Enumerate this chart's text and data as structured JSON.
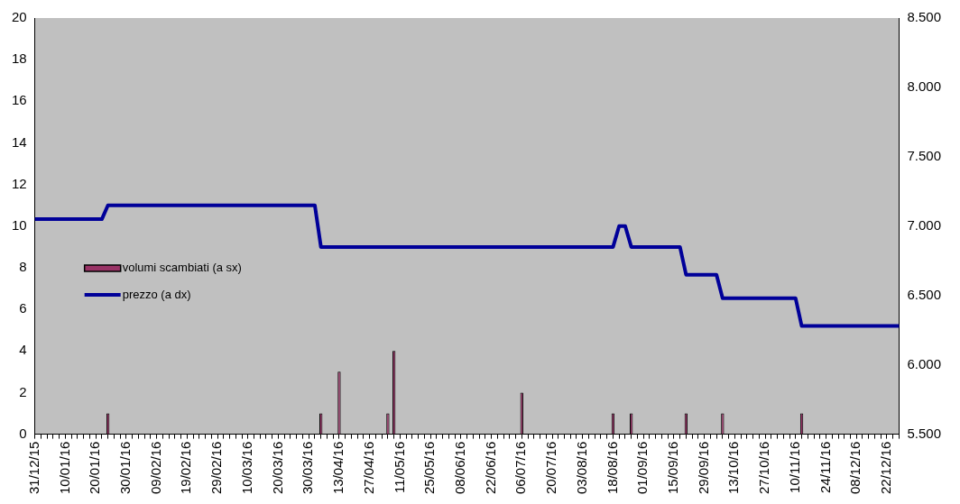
{
  "chart_data": {
    "type": "bar",
    "categories": [
      "31/12/15",
      null,
      null,
      null,
      null,
      "10/01/16",
      null,
      null,
      null,
      null,
      "20/01/16",
      null,
      null,
      null,
      null,
      "30/01/16",
      null,
      null,
      null,
      null,
      "09/02/16",
      null,
      null,
      null,
      null,
      "19/02/16",
      null,
      null,
      null,
      null,
      "29/02/16",
      null,
      null,
      null,
      null,
      "10/03/16",
      null,
      null,
      null,
      null,
      "20/03/16",
      null,
      null,
      null,
      null,
      "30/03/16",
      null,
      null,
      null,
      null,
      "13/04/16",
      null,
      null,
      null,
      null,
      "27/04/16",
      null,
      null,
      null,
      null,
      "11/05/16",
      null,
      null,
      null,
      null,
      "25/05/16",
      null,
      null,
      null,
      null,
      "08/06/16",
      null,
      null,
      null,
      null,
      "22/06/16",
      null,
      null,
      null,
      null,
      "06/07/16",
      null,
      null,
      null,
      null,
      "20/07/16",
      null,
      null,
      null,
      null,
      "03/08/16",
      null,
      null,
      null,
      null,
      "18/08/16",
      null,
      null,
      null,
      null,
      "01/09/16",
      null,
      null,
      null,
      null,
      "15/09/16",
      null,
      null,
      null,
      null,
      "29/09/16",
      null,
      null,
      null,
      null,
      "13/10/16",
      null,
      null,
      null,
      null,
      "27/10/16",
      null,
      null,
      null,
      null,
      "10/11/16",
      null,
      null,
      null,
      null,
      "24/11/16",
      null,
      null,
      null,
      null,
      "08/12/16",
      null,
      null,
      null,
      null,
      "22/12/16",
      null,
      null
    ],
    "series": [
      {
        "name": "volumi scambiati (a sx)",
        "color": "#993366",
        "values": [
          0,
          0,
          0,
          0,
          0,
          0,
          0,
          0,
          0,
          0,
          0,
          0,
          1,
          0,
          0,
          0,
          0,
          0,
          0,
          0,
          0,
          0,
          0,
          0,
          0,
          0,
          0,
          0,
          0,
          0,
          0,
          0,
          0,
          0,
          0,
          0,
          0,
          0,
          0,
          0,
          0,
          0,
          0,
          0,
          0,
          0,
          0,
          1,
          0,
          0,
          3,
          0,
          0,
          0,
          0,
          0,
          0,
          0,
          1,
          4,
          0,
          0,
          0,
          0,
          0,
          0,
          0,
          0,
          0,
          0,
          0,
          0,
          0,
          0,
          0,
          0,
          0,
          0,
          0,
          0,
          2,
          0,
          0,
          0,
          0,
          0,
          0,
          0,
          0,
          0,
          0,
          0,
          0,
          0,
          0,
          1,
          0,
          0,
          1,
          0,
          0,
          0,
          0,
          0,
          0,
          0,
          0,
          1,
          0,
          0,
          0,
          0,
          0,
          1,
          0,
          0,
          0,
          0,
          0,
          0,
          0,
          0,
          0,
          0,
          0,
          0,
          1,
          0,
          0,
          0,
          0,
          0,
          0,
          0,
          0,
          0,
          0,
          0,
          0,
          0,
          0,
          0,
          0
        ]
      },
      {
        "name": "prezzo (a dx)",
        "type": "line",
        "axis": "y2",
        "color": "#000099",
        "values": [
          7050,
          7050,
          7050,
          7050,
          7050,
          7050,
          7050,
          7050,
          7050,
          7050,
          7050,
          7050,
          7150,
          7150,
          7150,
          7150,
          7150,
          7150,
          7150,
          7150,
          7150,
          7150,
          7150,
          7150,
          7150,
          7150,
          7150,
          7150,
          7150,
          7150,
          7150,
          7150,
          7150,
          7150,
          7150,
          7150,
          7150,
          7150,
          7150,
          7150,
          7150,
          7150,
          7150,
          7150,
          7150,
          7150,
          7150,
          6850,
          6850,
          6850,
          6850,
          6850,
          6850,
          6850,
          6850,
          6850,
          6850,
          6850,
          6850,
          6850,
          6850,
          6850,
          6850,
          6850,
          6850,
          6850,
          6850,
          6850,
          6850,
          6850,
          6850,
          6850,
          6850,
          6850,
          6850,
          6850,
          6850,
          6850,
          6850,
          6850,
          6850,
          6850,
          6850,
          6850,
          6850,
          6850,
          6850,
          6850,
          6850,
          6850,
          6850,
          6850,
          6850,
          6850,
          6850,
          6850,
          7000,
          7000,
          6850,
          6850,
          6850,
          6850,
          6850,
          6850,
          6850,
          6850,
          6850,
          6650,
          6650,
          6650,
          6650,
          6650,
          6650,
          6480,
          6480,
          6480,
          6480,
          6480,
          6480,
          6480,
          6480,
          6480,
          6480,
          6480,
          6480,
          6480,
          6280,
          6280,
          6280,
          6280,
          6280,
          6280,
          6280,
          6280,
          6280,
          6280,
          6280,
          6280,
          6280,
          6280,
          6280,
          6280,
          6280
        ]
      }
    ],
    "ylim": [
      0,
      20
    ],
    "yticks": [
      0,
      2,
      4,
      6,
      8,
      10,
      12,
      14,
      16,
      18,
      20
    ],
    "y2lim": [
      5500,
      8500
    ],
    "y2ticks": [
      {
        "value": 5500,
        "label": "5.500"
      },
      {
        "value": 6000,
        "label": "6.000"
      },
      {
        "value": 6500,
        "label": "6.500"
      },
      {
        "value": 7000,
        "label": "7.000"
      },
      {
        "value": 7500,
        "label": "7.500"
      },
      {
        "value": 8000,
        "label": "8.000"
      },
      {
        "value": 8500,
        "label": "8.500"
      }
    ],
    "legend": "left",
    "marker": "none",
    "line_style": "solid"
  }
}
